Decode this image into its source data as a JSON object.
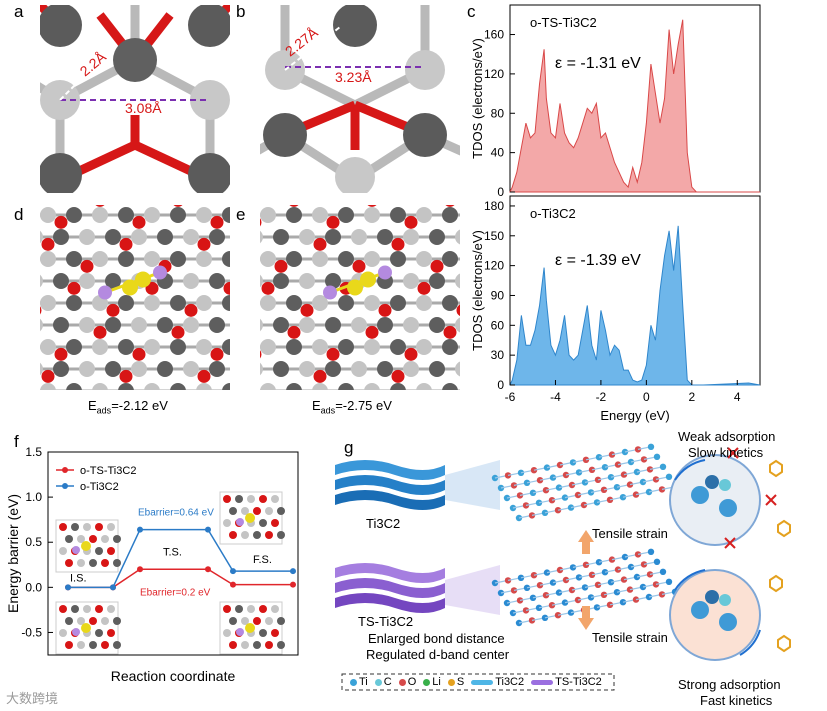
{
  "figure": {
    "labels": {
      "a": "a",
      "b": "b",
      "c": "c",
      "d": "d",
      "e": "e",
      "f": "f",
      "g": "g"
    },
    "panel_a": {
      "d1": "2.2Å",
      "d2": "3.08Å"
    },
    "panel_b": {
      "d1": "2.27Å",
      "d2": "3.23Å"
    },
    "panel_d": {
      "eads_prefix": "E",
      "eads_sub": "ads",
      "eads_value": "=-2.12 eV"
    },
    "panel_e": {
      "eads_prefix": "E",
      "eads_sub": "ads",
      "eads_value": "=-2.75 eV"
    },
    "panel_g": {
      "ti3c2_label": "Ti3C2",
      "ts_label": "TS-Ti3C2",
      "bond_text": "Enlarged bond distance",
      "dband_text": "Regulated d-band center",
      "tensile_top": "Tensile strain",
      "tensile_bottom": "Tensile strain",
      "weak_line1": "Weak adsorption",
      "weak_line2": "Slow kinetics",
      "strong_line1": "Strong adsorption",
      "strong_line2": "Fast kinetics",
      "legend": [
        "Ti",
        "C",
        "O",
        "Li",
        "S",
        "Ti3C2",
        "TS-Ti3C2"
      ]
    },
    "watermark": "大数跨境",
    "colors": {
      "ti_dark": "#5e5e5e",
      "ti_light": "#c4c4c4",
      "o": "#d81515",
      "s": "#e9d81a",
      "li": "#b48ae0",
      "tdos_red": "#f3a8a8",
      "tdos_red_line": "#d94848",
      "tdos_blue": "#6eb6ea",
      "tdos_blue_line": "#2f86cc"
    }
  },
  "chart_data": [
    {
      "type": "area",
      "title": "o-TS-Ti3C2",
      "annotation": "ε = -1.31 eV",
      "ylabel": "TDOS (electrons/eV)",
      "ylim": [
        0,
        190
      ],
      "yticks": [
        0,
        40,
        80,
        120,
        160
      ],
      "xlim": [
        -6,
        5
      ],
      "x": [
        -6,
        -5.9,
        -5.7,
        -5.5,
        -5.3,
        -5.1,
        -4.9,
        -4.7,
        -4.5,
        -4.4,
        -4.2,
        -4.0,
        -3.8,
        -3.6,
        -3.4,
        -3.2,
        -3.0,
        -2.8,
        -2.6,
        -2.4,
        -2.2,
        -2.0,
        -1.8,
        -1.6,
        -1.4,
        -1.2,
        -1.0,
        -0.8,
        -0.6,
        -0.4,
        -0.2,
        0.0,
        0.2,
        0.4,
        0.6,
        0.8,
        1.0,
        1.2,
        1.4,
        1.6,
        1.8,
        2.0,
        2.2,
        3.0,
        5.0
      ],
      "y": [
        0,
        5,
        20,
        45,
        70,
        55,
        60,
        110,
        145,
        95,
        60,
        55,
        90,
        60,
        50,
        45,
        55,
        70,
        85,
        80,
        90,
        55,
        60,
        45,
        30,
        20,
        10,
        5,
        25,
        10,
        30,
        70,
        130,
        100,
        70,
        95,
        165,
        120,
        150,
        175,
        40,
        5,
        0,
        0,
        0
      ]
    },
    {
      "type": "area",
      "title": "o-Ti3C2",
      "annotation": "ε = -1.39 eV",
      "xlabel": "Energy (eV)",
      "ylabel": "TDOS (electrons/eV)",
      "ylim": [
        0,
        190
      ],
      "yticks": [
        0,
        30,
        60,
        90,
        120,
        150,
        180
      ],
      "xlim": [
        -6,
        5
      ],
      "xticks": [
        -6,
        -4,
        -2,
        0,
        2,
        4
      ],
      "x": [
        -6,
        -5.9,
        -5.7,
        -5.5,
        -5.3,
        -5.1,
        -4.9,
        -4.7,
        -4.5,
        -4.4,
        -4.2,
        -4.0,
        -3.8,
        -3.6,
        -3.4,
        -3.2,
        -3.0,
        -2.8,
        -2.6,
        -2.4,
        -2.2,
        -2.0,
        -1.8,
        -1.6,
        -1.4,
        -1.2,
        -1.0,
        -0.8,
        -0.6,
        -0.4,
        -0.2,
        0.0,
        0.2,
        0.4,
        0.6,
        0.8,
        1.0,
        1.2,
        1.4,
        1.6,
        1.8,
        2.0,
        2.5,
        4.5,
        5.0
      ],
      "y": [
        0,
        5,
        25,
        70,
        40,
        40,
        55,
        80,
        118,
        85,
        40,
        30,
        45,
        70,
        30,
        25,
        30,
        55,
        80,
        40,
        25,
        75,
        55,
        30,
        40,
        35,
        15,
        15,
        5,
        3,
        5,
        20,
        60,
        45,
        95,
        130,
        155,
        115,
        160,
        80,
        5,
        0,
        0,
        2,
        0
      ]
    },
    {
      "type": "line",
      "title": "",
      "xlabel": "Reaction coordinate",
      "ylabel": "Energy barrier (eV)",
      "ylim": [
        -0.75,
        1.5
      ],
      "yticks": [
        -0.5,
        0.0,
        0.5,
        1.0,
        1.5
      ],
      "categories": [
        "I.S.",
        "T.S.",
        "F.S."
      ],
      "series": [
        {
          "name": "o-TS-Ti3C2",
          "color": "#e0262b",
          "values": [
            0,
            0.2,
            0.03
          ]
        },
        {
          "name": "o-Ti3C2",
          "color": "#2b7bc7",
          "values": [
            0,
            0.64,
            0.18
          ]
        }
      ],
      "annotations": {
        "blue_barrier": "Ebarrier=0.64 eV",
        "red_barrier": "Ebarrier=0.2 eV",
        "ts": "T.S.",
        "is": "I.S.",
        "fs": "F.S."
      }
    }
  ]
}
